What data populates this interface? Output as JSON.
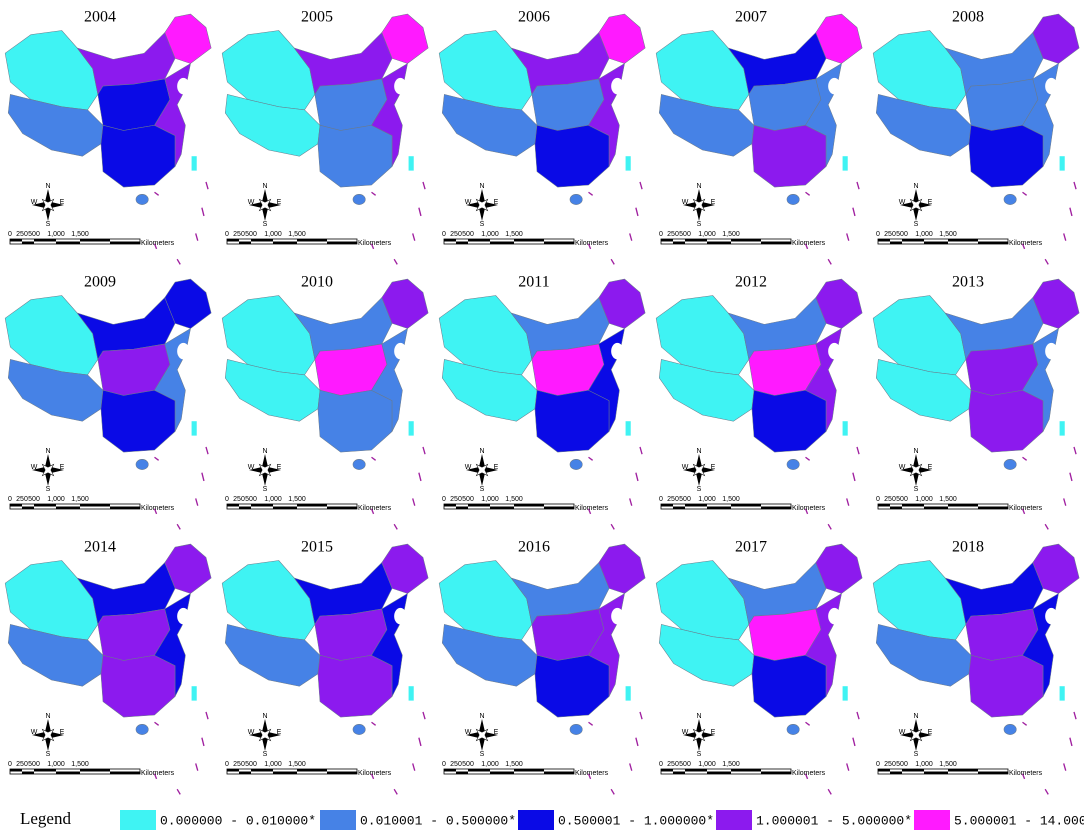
{
  "panels": [
    {
      "year": "2004",
      "classes": [
        0,
        1,
        3,
        4,
        2,
        2,
        3
      ]
    },
    {
      "year": "2005",
      "classes": [
        0,
        0,
        3,
        4,
        1,
        1,
        3
      ]
    },
    {
      "year": "2006",
      "classes": [
        0,
        1,
        3,
        4,
        1,
        2,
        3
      ]
    },
    {
      "year": "2007",
      "classes": [
        0,
        1,
        2,
        4,
        1,
        3,
        1
      ]
    },
    {
      "year": "2008",
      "classes": [
        0,
        1,
        1,
        3,
        1,
        2,
        1
      ]
    },
    {
      "year": "2009",
      "classes": [
        0,
        1,
        2,
        2,
        3,
        2,
        1
      ]
    },
    {
      "year": "2010",
      "classes": [
        0,
        0,
        1,
        3,
        4,
        1,
        1
      ]
    },
    {
      "year": "2011",
      "classes": [
        0,
        0,
        1,
        3,
        4,
        2,
        2
      ]
    },
    {
      "year": "2012",
      "classes": [
        0,
        0,
        1,
        3,
        4,
        2,
        3
      ]
    },
    {
      "year": "2013",
      "classes": [
        0,
        0,
        1,
        3,
        3,
        3,
        1
      ]
    },
    {
      "year": "2014",
      "classes": [
        0,
        1,
        2,
        3,
        3,
        3,
        2
      ]
    },
    {
      "year": "2015",
      "classes": [
        0,
        1,
        2,
        3,
        3,
        3,
        2
      ]
    },
    {
      "year": "2016",
      "classes": [
        0,
        1,
        1,
        3,
        3,
        2,
        3
      ]
    },
    {
      "year": "2017",
      "classes": [
        0,
        0,
        1,
        3,
        4,
        2,
        3
      ]
    },
    {
      "year": "2018",
      "classes": [
        0,
        1,
        2,
        3,
        3,
        3,
        2
      ]
    }
  ],
  "scale": {
    "labels": [
      "0",
      "250",
      "500",
      "1,000",
      "1,500"
    ],
    "unit": "Kilometers"
  },
  "compass": {
    "n": "N",
    "s": "S",
    "e": "E",
    "w": "W"
  },
  "legend": {
    "title": "Legend",
    "items": [
      {
        "label": "0.000000 - 0.010000*",
        "color": "#3ff3f3"
      },
      {
        "label": "0.010001 - 0.500000*",
        "color": "#4682e6"
      },
      {
        "label": "0.500001 - 1.000000*",
        "color": "#0a0ae6"
      },
      {
        "label": "1.000001 - 5.000000*",
        "color": "#8c1aee"
      },
      {
        "label": "5.000001 - 14.000000*",
        "color": "#ff1aff"
      }
    ]
  }
}
